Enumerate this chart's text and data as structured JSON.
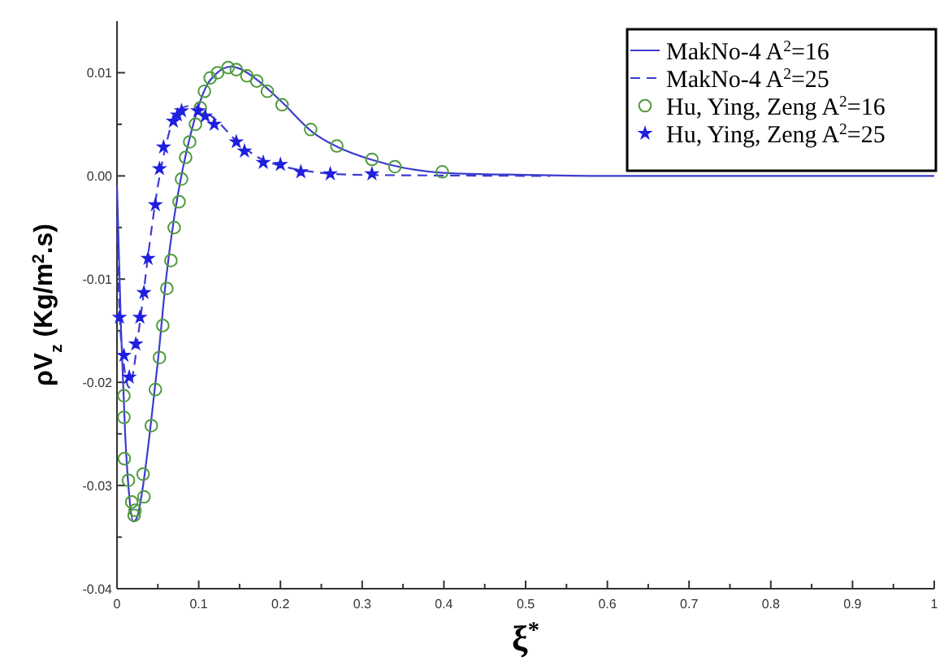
{
  "chart_data": {
    "type": "line",
    "xlabel": "ξ$^{*}$",
    "ylabel": "ρV$_{z}$ (Kg/m$^{2}$.s)",
    "xlim": [
      0,
      1
    ],
    "ylim": [
      -0.04,
      0.015
    ],
    "xticks": [
      0,
      {
        "value": 0.05,
        "label": null
      },
      0.1,
      {
        "value": 0.15,
        "label": null
      },
      0.2,
      {
        "value": 0.25,
        "label": null
      },
      0.3,
      {
        "value": 0.35,
        "label": null
      },
      0.4,
      {
        "value": 0.45,
        "label": null
      },
      0.5,
      {
        "value": 0.55,
        "label": null
      },
      0.6,
      {
        "value": 0.65,
        "label": null
      },
      0.7,
      {
        "value": 0.75,
        "label": null
      },
      0.8,
      {
        "value": 0.85,
        "label": null
      },
      0.9,
      {
        "value": 0.95,
        "label": null
      },
      1
    ],
    "yticks": [
      {
        "value": -0.04,
        "label": "-0.04"
      },
      {
        "value": -0.035,
        "label": null
      },
      {
        "value": -0.03,
        "label": "-0.03"
      },
      {
        "value": -0.025,
        "label": null
      },
      {
        "value": -0.02,
        "label": "-0.02"
      },
      {
        "value": -0.015,
        "label": null
      },
      {
        "value": -0.01,
        "label": "-0.01"
      },
      {
        "value": -0.005,
        "label": null
      },
      {
        "value": 0,
        "label": "0.00"
      },
      {
        "value": 0.005,
        "label": null
      },
      {
        "value": 0.01,
        "label": "0.01"
      }
    ],
    "grid": false,
    "legend": "top right",
    "series": [
      {
        "name": "MakNo-4 A$^{2}$=16",
        "color": "#3c3cd0",
        "line_style": "solid",
        "marker": "none",
        "x": [
          0,
          0.005,
          0.01,
          0.015,
          0.02,
          0.025,
          0.03,
          0.04,
          0.05,
          0.06,
          0.07,
          0.08,
          0.09,
          0.1,
          0.11,
          0.12,
          0.13,
          0.14,
          0.15,
          0.17,
          0.2,
          0.24,
          0.27,
          0.31,
          0.35,
          0.4,
          0.5,
          0.6,
          1
        ],
        "values": [
          -0.001,
          -0.015,
          -0.025,
          -0.031,
          -0.0335,
          -0.033,
          -0.031,
          -0.025,
          -0.018,
          -0.01,
          -0.004,
          0.0005,
          0.004,
          0.0068,
          0.0088,
          0.0098,
          0.0104,
          0.0106,
          0.0104,
          0.0094,
          0.0073,
          0.0042,
          0.0028,
          0.0016,
          0.0008,
          0.0003,
          0.0001,
          0,
          0
        ]
      },
      {
        "name": "MakNo-4 A$^{2}$=25",
        "color": "#3c3cd0",
        "line_style": "dashed",
        "marker": "none",
        "x": [
          0,
          0.003,
          0.008,
          0.015,
          0.02,
          0.025,
          0.03,
          0.04,
          0.05,
          0.06,
          0.07,
          0.08,
          0.09,
          0.1,
          0.12,
          0.15,
          0.18,
          0.2,
          0.25,
          0.3,
          0.53
        ],
        "values": [
          -0.004,
          -0.013,
          -0.018,
          -0.0205,
          -0.019,
          -0.016,
          -0.013,
          -0.0065,
          -0.001,
          0.003,
          0.0057,
          0.0066,
          0.0068,
          0.0066,
          0.0055,
          0.0031,
          0.0015,
          0.001,
          0.0003,
          0.0001,
          0
        ]
      },
      {
        "name": "Hu, Ying, Zeng A$^{2}$=16",
        "type": "scatter",
        "color": "#4f9a3c",
        "marker": "circle",
        "x": [
          0.0085,
          0.0085,
          0.009,
          0.014,
          0.018,
          0.022,
          0.021,
          0.032,
          0.033,
          0.042,
          0.047,
          0.052,
          0.056,
          0.061,
          0.066,
          0.07,
          0.076,
          0.079,
          0.084,
          0.089,
          0.096,
          0.102,
          0.107,
          0.114,
          0.123,
          0.136,
          0.146,
          0.159,
          0.171,
          0.184,
          0.202,
          0.237,
          0.269,
          0.312,
          0.34,
          0.398
        ],
        "values": [
          -0.0213,
          -0.0234,
          -0.0274,
          -0.0295,
          -0.0316,
          -0.0324,
          -0.0329,
          -0.0289,
          -0.0311,
          -0.0242,
          -0.0207,
          -0.0176,
          -0.0145,
          -0.0109,
          -0.0082,
          -0.005,
          -0.0025,
          -0.0003,
          0.0018,
          0.0033,
          0.005,
          0.0066,
          0.0082,
          0.0095,
          0.01,
          0.0105,
          0.0103,
          0.0097,
          0.0092,
          0.0082,
          0.0069,
          0.0045,
          0.0029,
          0.0016,
          0.0009,
          0.0004
        ]
      },
      {
        "name": "Hu, Ying, Zeng A$^{2}$=25",
        "type": "scatter",
        "color": "#2020e0",
        "marker": "star",
        "x": [
          0.003,
          0.0085,
          0.015,
          0.023,
          0.028,
          0.033,
          0.038,
          0.047,
          0.052,
          0.057,
          0.069,
          0.074,
          0.079,
          0.099,
          0.108,
          0.119,
          0.146,
          0.156,
          0.179,
          0.2,
          0.225,
          0.261,
          0.312
        ],
        "values": [
          -0.0137,
          -0.0174,
          -0.0195,
          -0.0163,
          -0.0137,
          -0.0113,
          -0.008,
          -0.0028,
          0.0007,
          0.0028,
          0.0053,
          0.0059,
          0.0063,
          0.0063,
          0.0058,
          0.005,
          0.0033,
          0.0024,
          0.0013,
          0.0011,
          0.0004,
          0.0002,
          0.0002
        ]
      }
    ]
  }
}
